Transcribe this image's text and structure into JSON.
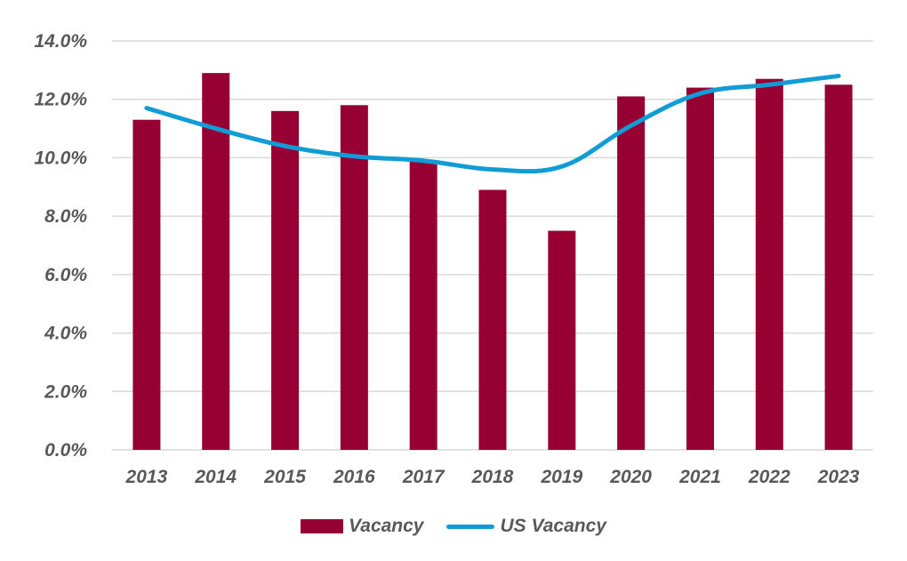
{
  "chart_data": {
    "type": "bar",
    "categories": [
      "2013",
      "2014",
      "2015",
      "2016",
      "2017",
      "2018",
      "2019",
      "2020",
      "2021",
      "2022",
      "2023"
    ],
    "series": [
      {
        "name": "Vacancy",
        "type": "bar",
        "color": "#960032",
        "values": [
          11.3,
          12.9,
          11.6,
          11.8,
          9.9,
          8.9,
          7.5,
          12.1,
          12.4,
          12.7,
          12.5
        ]
      },
      {
        "name": "US Vacancy",
        "type": "line",
        "color": "#119CD6",
        "values": [
          11.7,
          11.0,
          10.4,
          10.05,
          9.9,
          9.6,
          9.7,
          11.1,
          12.2,
          12.5,
          12.8
        ]
      }
    ],
    "ylim": [
      0,
      14
    ],
    "yticks": [
      "0.0%",
      "2.0%",
      "4.0%",
      "6.0%",
      "8.0%",
      "10.0%",
      "12.0%",
      "14.0%"
    ],
    "grid": true,
    "legend": "bottom",
    "title": "",
    "xlabel": "",
    "ylabel": ""
  }
}
